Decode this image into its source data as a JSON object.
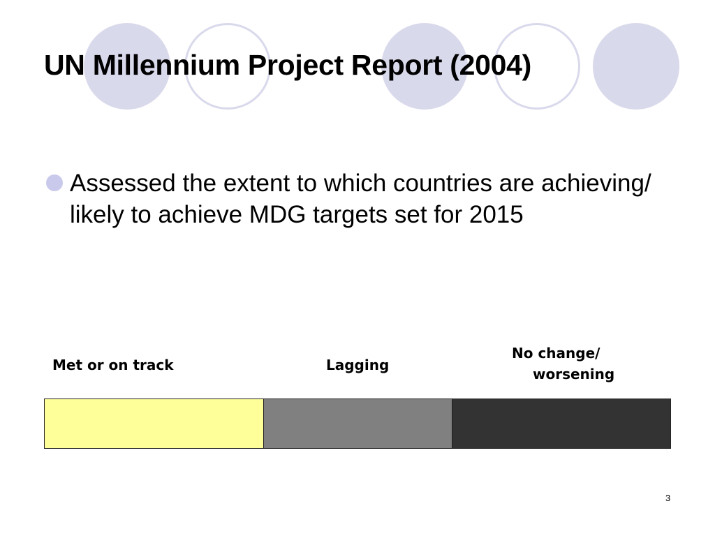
{
  "slide": {
    "title": "UN Millennium Project Report (2004)",
    "bullet": "Assessed the extent to which countries are achieving/ likely to achieve MDG targets set for 2015",
    "page_number": "3"
  },
  "legend": {
    "met_label": "Met or on track",
    "lagging_label": "Lagging",
    "no_change_line1": "No change/",
    "no_change_line2": "worsening"
  },
  "colors": {
    "met": "#ffff99",
    "lagging": "#808080",
    "no_change": "#333333",
    "circle": "#d9d9ec",
    "bullet": "#c9c9ec"
  }
}
